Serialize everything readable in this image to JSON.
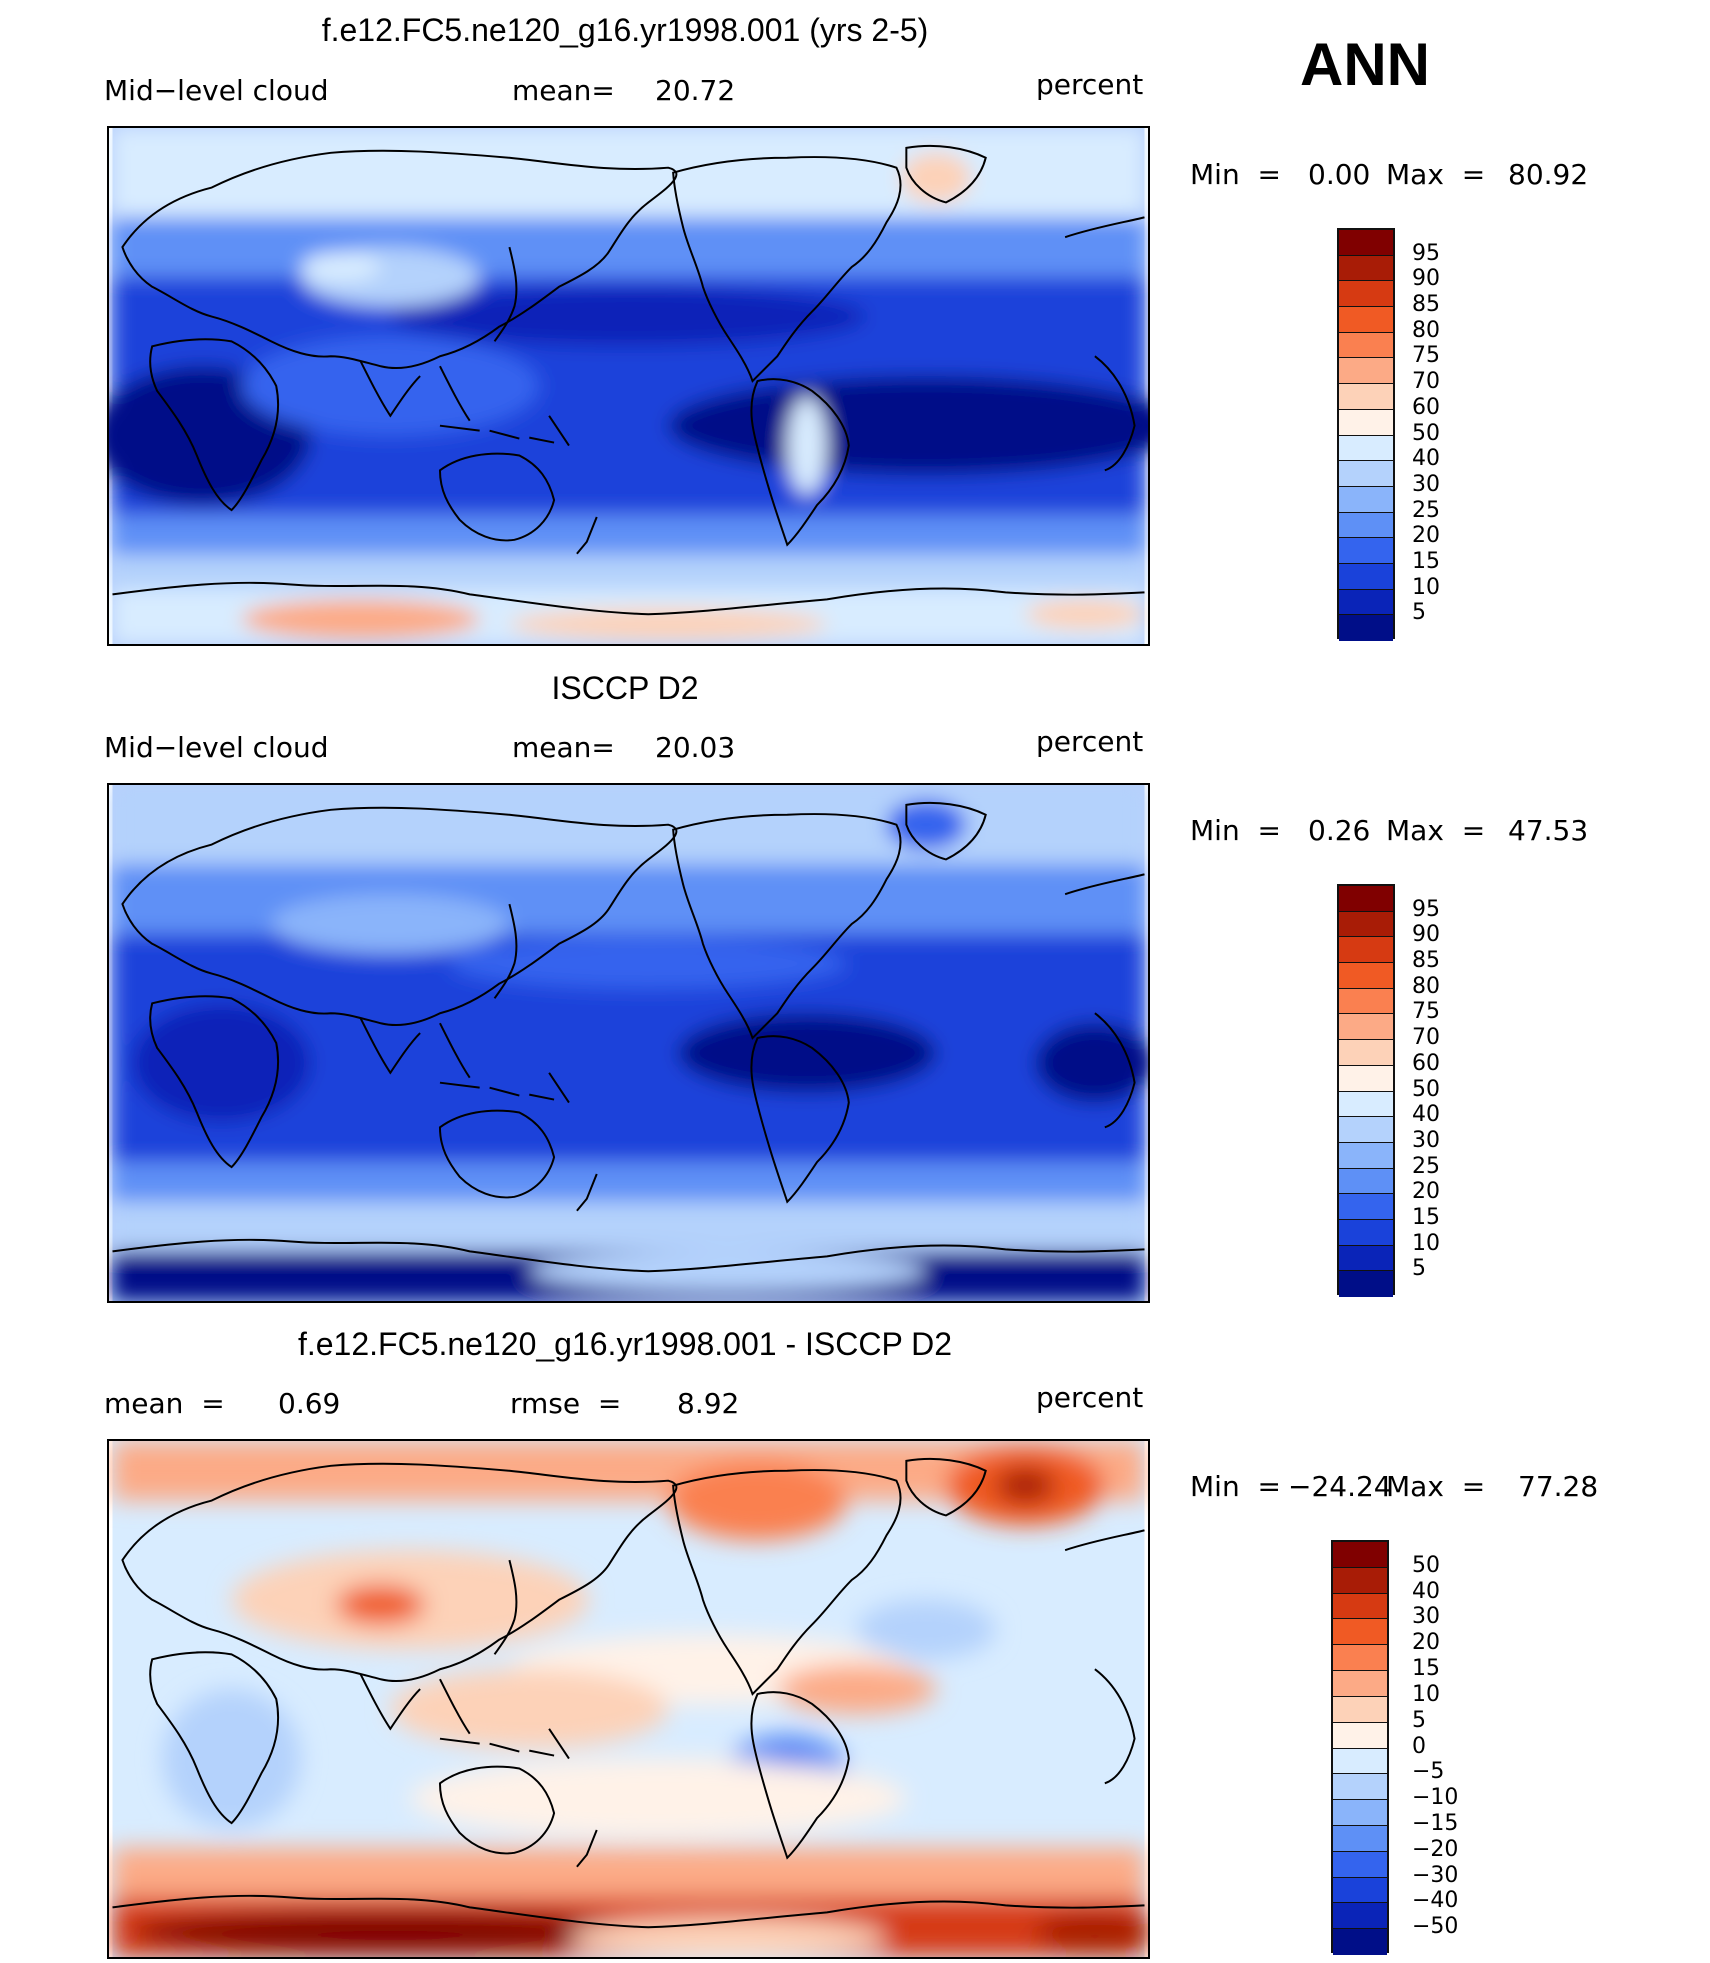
{
  "season": "ANN",
  "units": "percent",
  "panels": [
    {
      "title": "f.e12.FC5.ne120_g16.yr1998.001 (yrs 2-5)",
      "left_label": "Mid−level cloud",
      "stat_label": "mean=",
      "stat_value": "20.72",
      "min_label": "Min  =",
      "min_value": "0.00",
      "max_label": "Max  =",
      "max_value": "80.92",
      "colorbar": {
        "colors": [
          "#800000",
          "#a81c06",
          "#d63a12",
          "#f05a24",
          "#fa8050",
          "#fcaa86",
          "#fdd2b8",
          "#fff2e8",
          "#d8ecff",
          "#b4d2fc",
          "#8ab4fa",
          "#5e90f6",
          "#3464ee",
          "#1a42da",
          "#0a24b8",
          "#000e88"
        ],
        "labels": [
          "95",
          "90",
          "85",
          "80",
          "75",
          "70",
          "60",
          "50",
          "40",
          "30",
          "25",
          "20",
          "15",
          "10",
          "5"
        ]
      }
    },
    {
      "title": "ISCCP D2",
      "left_label": "Mid−level cloud",
      "stat_label": "mean=",
      "stat_value": "20.03",
      "min_label": "Min  =",
      "min_value": "0.26",
      "max_label": "Max  =",
      "max_value": "47.53",
      "colorbar": {
        "colors": [
          "#800000",
          "#a81c06",
          "#d63a12",
          "#f05a24",
          "#fa8050",
          "#fcaa86",
          "#fdd2b8",
          "#fff2e8",
          "#d8ecff",
          "#b4d2fc",
          "#8ab4fa",
          "#5e90f6",
          "#3464ee",
          "#1a42da",
          "#0a24b8",
          "#000e88"
        ],
        "labels": [
          "95",
          "90",
          "85",
          "80",
          "75",
          "70",
          "60",
          "50",
          "40",
          "30",
          "25",
          "20",
          "15",
          "10",
          "5"
        ]
      }
    },
    {
      "title": "f.e12.FC5.ne120_g16.yr1998.001 - ISCCP D2",
      "left_label": "mean  =",
      "left_value": "0.69",
      "stat_label": "rmse  =",
      "stat_value": "8.92",
      "min_label": "Min  =",
      "min_value": "−24.24",
      "max_label": "Max  =",
      "max_value": "77.28",
      "colorbar": {
        "colors": [
          "#800000",
          "#a81c06",
          "#d63a12",
          "#f05a24",
          "#fa8050",
          "#fcaa86",
          "#fdd2b8",
          "#fff2e8",
          "#d8ecff",
          "#b4d2fc",
          "#8ab4fa",
          "#5e90f6",
          "#3464ee",
          "#1a42da",
          "#0a24b8",
          "#000e88"
        ],
        "labels": [
          "50",
          "40",
          "30",
          "20",
          "15",
          "10",
          "5",
          "0",
          "−5",
          "−10",
          "−15",
          "−20",
          "−30",
          "−40",
          "−50"
        ]
      }
    }
  ]
}
